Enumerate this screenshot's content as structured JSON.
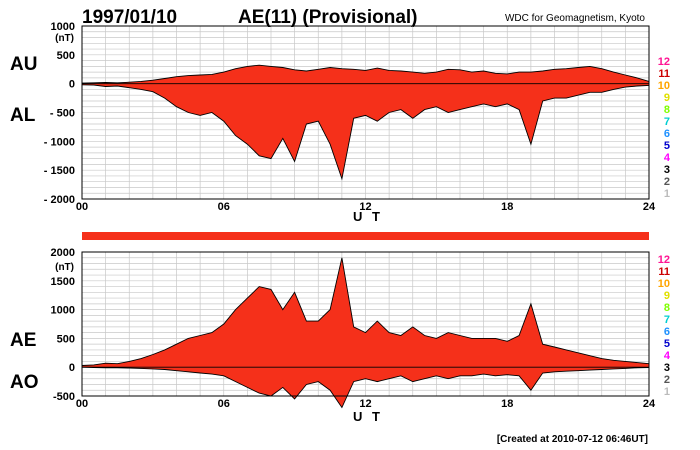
{
  "header": {
    "date": "1997/01/10",
    "title": "AE(11) (Provisional)",
    "source": "WDC for Geomagnetism, Kyoto"
  },
  "footer": {
    "created": "[Created at 2010-07-12 06:46UT]"
  },
  "station_numbers": [
    "12",
    "11",
    "10",
    "9",
    "8",
    "7",
    "6",
    "5",
    "4",
    "3",
    "2",
    "1"
  ],
  "station_colors": [
    "#ff1493",
    "#cc0000",
    "#ffa500",
    "#e0e000",
    "#7fff00",
    "#00ced1",
    "#1e90ff",
    "#0000cd",
    "#ff00ff",
    "#000000",
    "#555555",
    "#bbbbbb"
  ],
  "fill_color": "#f5301a",
  "bar_color": "#f5301a",
  "chart_data": [
    {
      "type": "area",
      "panel": "top",
      "labels": {
        "upper": "AU",
        "lower": "AL",
        "unit": "(nT)",
        "xlabel": "U T"
      },
      "xlim": [
        0,
        24
      ],
      "ylim": [
        -2000,
        1000
      ],
      "xticks": [
        "00",
        "06",
        "12",
        "18",
        "24"
      ],
      "yticks": [
        "1000",
        "500",
        "0",
        "- 500",
        "- 1000",
        "- 1500",
        "- 2000"
      ],
      "x": [
        0,
        0.5,
        1,
        1.5,
        2,
        2.5,
        3,
        3.5,
        4,
        4.5,
        5,
        5.5,
        6,
        6.5,
        7,
        7.5,
        8,
        8.5,
        9,
        9.5,
        10,
        10.5,
        11,
        11.5,
        12,
        12.5,
        13,
        13.5,
        14,
        14.5,
        15,
        15.5,
        16,
        16.5,
        17,
        17.5,
        18,
        18.5,
        19,
        19.5,
        20,
        20.5,
        21,
        21.5,
        22,
        22.5,
        23,
        23.5,
        24
      ],
      "series": [
        {
          "values": [
            10,
            15,
            20,
            15,
            25,
            40,
            60,
            90,
            120,
            140,
            150,
            160,
            200,
            260,
            300,
            320,
            300,
            280,
            240,
            220,
            250,
            280,
            260,
            250,
            230,
            270,
            230,
            220,
            200,
            180,
            200,
            250,
            240,
            200,
            220,
            180,
            170,
            200,
            200,
            220,
            250,
            260,
            280,
            300,
            260,
            200,
            150,
            100,
            40
          ]
        },
        {
          "values": [
            -20,
            -25,
            -50,
            -40,
            -70,
            -100,
            -140,
            -250,
            -400,
            -500,
            -550,
            -500,
            -650,
            -900,
            -1050,
            -1250,
            -1300,
            -950,
            -1350,
            -700,
            -650,
            -1050,
            -1650,
            -600,
            -550,
            -650,
            -500,
            -450,
            -600,
            -450,
            -400,
            -500,
            -450,
            -400,
            -350,
            -400,
            -350,
            -450,
            -1050,
            -300,
            -250,
            -250,
            -200,
            -150,
            -150,
            -100,
            -60,
            -40,
            -30
          ]
        }
      ]
    },
    {
      "type": "area",
      "panel": "bottom",
      "labels": {
        "upper": "AE",
        "lower": "AO",
        "unit": "(nT)",
        "xlabel": "U T"
      },
      "xlim": [
        0,
        24
      ],
      "ylim": [
        -500,
        2000
      ],
      "xticks": [
        "00",
        "06",
        "12",
        "18",
        "24"
      ],
      "yticks": [
        "2000",
        "1500",
        "1000",
        "500",
        "0",
        "-500"
      ],
      "x": [
        0,
        0.5,
        1,
        1.5,
        2,
        2.5,
        3,
        3.5,
        4,
        4.5,
        5,
        5.5,
        6,
        6.5,
        7,
        7.5,
        8,
        8.5,
        9,
        9.5,
        10,
        10.5,
        11,
        11.5,
        12,
        12.5,
        13,
        13.5,
        14,
        14.5,
        15,
        15.5,
        16,
        16.5,
        17,
        17.5,
        18,
        18.5,
        19,
        19.5,
        20,
        20.5,
        21,
        21.5,
        22,
        22.5,
        23,
        23.5,
        24
      ],
      "series": [
        {
          "values": [
            30,
            40,
            70,
            60,
            100,
            150,
            220,
            300,
            400,
            500,
            550,
            600,
            750,
            1000,
            1200,
            1400,
            1350,
            1000,
            1300,
            800,
            800,
            1000,
            1900,
            700,
            600,
            800,
            600,
            550,
            700,
            550,
            500,
            600,
            550,
            500,
            500,
            500,
            450,
            550,
            1100,
            400,
            350,
            300,
            250,
            200,
            150,
            120,
            100,
            80,
            60
          ]
        },
        {
          "values": [
            0,
            -5,
            -10,
            -10,
            -15,
            -20,
            -30,
            -40,
            -60,
            -80,
            -100,
            -120,
            -150,
            -250,
            -350,
            -450,
            -500,
            -350,
            -550,
            -300,
            -250,
            -400,
            -700,
            -250,
            -200,
            -250,
            -200,
            -150,
            -250,
            -200,
            -150,
            -200,
            -150,
            -150,
            -120,
            -150,
            -130,
            -150,
            -400,
            -100,
            -80,
            -70,
            -60,
            -50,
            -40,
            -30,
            -20,
            -10,
            -5
          ]
        }
      ]
    }
  ]
}
